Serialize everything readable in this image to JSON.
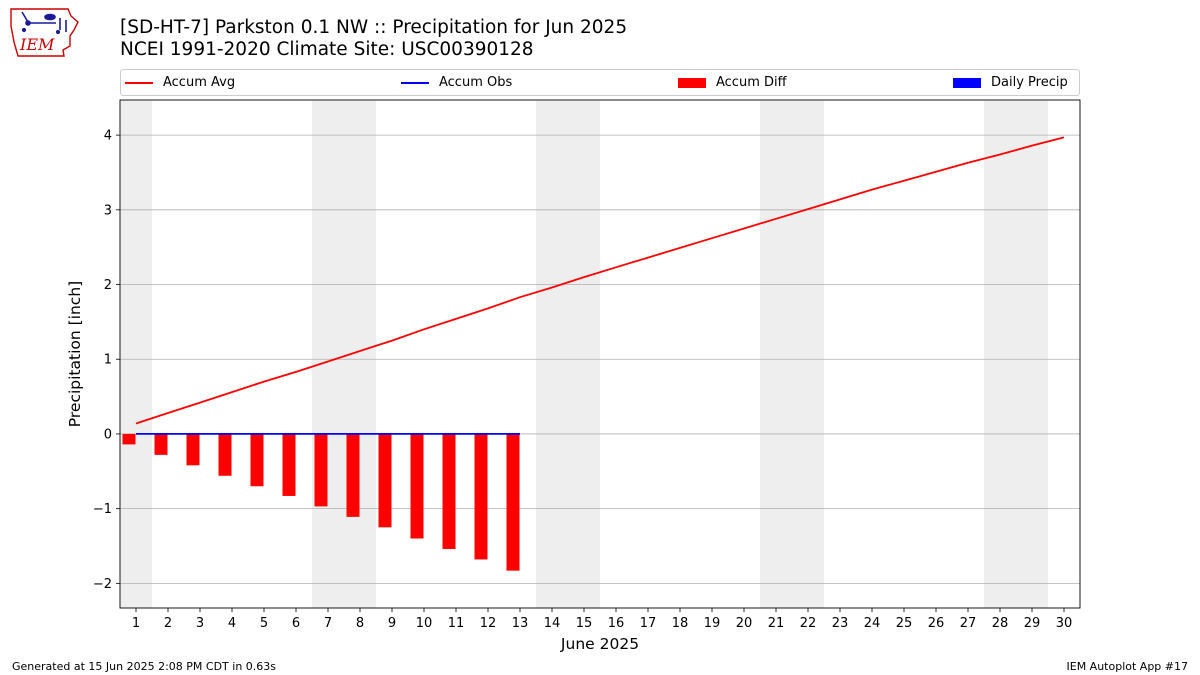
{
  "header": {
    "title_line1": "[SD-HT-7] Parkston 0.1 NW :: Precipitation for Jun 2025",
    "title_line2": "NCEI 1991-2020 Climate Site: USC00390128"
  },
  "logo": {
    "text": "IEM",
    "color": "#cc0000",
    "icon": "iowa-state-outline-with-weather-symbols"
  },
  "legend": {
    "position": "top-spanning",
    "items": [
      {
        "label": "Accum Avg",
        "kind": "line",
        "color": "#ff0000"
      },
      {
        "label": "Accum Obs",
        "kind": "line",
        "color": "#0000ff"
      },
      {
        "label": "Accum Diff",
        "kind": "bar",
        "color": "#ff0000"
      },
      {
        "label": "Daily Precip",
        "kind": "bar",
        "color": "#0000ff"
      }
    ]
  },
  "footer": {
    "left": "Generated at 15 Jun 2025 2:08 PM CDT in 0.63s",
    "right": "IEM Autoplot App #17"
  },
  "chart_data": {
    "type": "bar",
    "xlabel": "June 2025",
    "ylabel": "Precipitation [inch]",
    "x": [
      1,
      2,
      3,
      4,
      5,
      6,
      7,
      8,
      9,
      10,
      11,
      12,
      13,
      14,
      15,
      16,
      17,
      18,
      19,
      20,
      21,
      22,
      23,
      24,
      25,
      26,
      27,
      28,
      29,
      30
    ],
    "xlim": [
      0.5,
      30.5
    ],
    "ylim": [
      -2.33,
      4.47
    ],
    "yticks": [
      -2,
      -1,
      0,
      1,
      2,
      3,
      4
    ],
    "grid": "horizontal",
    "weekend_shading": [
      [
        0.5,
        1.5
      ],
      [
        6.5,
        8.5
      ],
      [
        13.5,
        15.5
      ],
      [
        20.5,
        22.5
      ],
      [
        27.5,
        29.5
      ]
    ],
    "colors": {
      "avg": "#ff0000",
      "obs": "#0000ff",
      "diff": "#ff0000",
      "daily": "#0000ff",
      "shade": "#eeeeee",
      "grid": "#b0b0b0"
    },
    "series": [
      {
        "name": "Accum Avg",
        "kind": "line",
        "values": [
          0.14,
          0.28,
          0.42,
          0.56,
          0.7,
          0.83,
          0.97,
          1.11,
          1.25,
          1.4,
          1.54,
          1.68,
          1.83,
          1.96,
          2.1,
          2.23,
          2.36,
          2.49,
          2.62,
          2.75,
          2.88,
          3.01,
          3.14,
          3.27,
          3.39,
          3.51,
          3.63,
          3.74,
          3.86,
          3.97
        ]
      },
      {
        "name": "Accum Obs",
        "kind": "line",
        "x": [
          1,
          2,
          3,
          4,
          5,
          6,
          7,
          8,
          9,
          10,
          11,
          12,
          13
        ],
        "values": [
          0,
          0,
          0,
          0,
          0,
          0,
          0,
          0,
          0,
          0,
          0,
          0,
          0
        ]
      },
      {
        "name": "Accum Diff",
        "kind": "bar",
        "x": [
          1,
          2,
          3,
          4,
          5,
          6,
          7,
          8,
          9,
          10,
          11,
          12,
          13
        ],
        "values": [
          -0.14,
          -0.28,
          -0.42,
          -0.56,
          -0.7,
          -0.83,
          -0.97,
          -1.11,
          -1.25,
          -1.4,
          -1.54,
          -1.68,
          -1.83
        ]
      },
      {
        "name": "Daily Precip",
        "kind": "bar",
        "x": [
          1,
          2,
          3,
          4,
          5,
          6,
          7,
          8,
          9,
          10,
          11,
          12,
          13
        ],
        "values": [
          0,
          0,
          0,
          0,
          0,
          0,
          0,
          0,
          0,
          0,
          0,
          0,
          0
        ]
      }
    ]
  }
}
